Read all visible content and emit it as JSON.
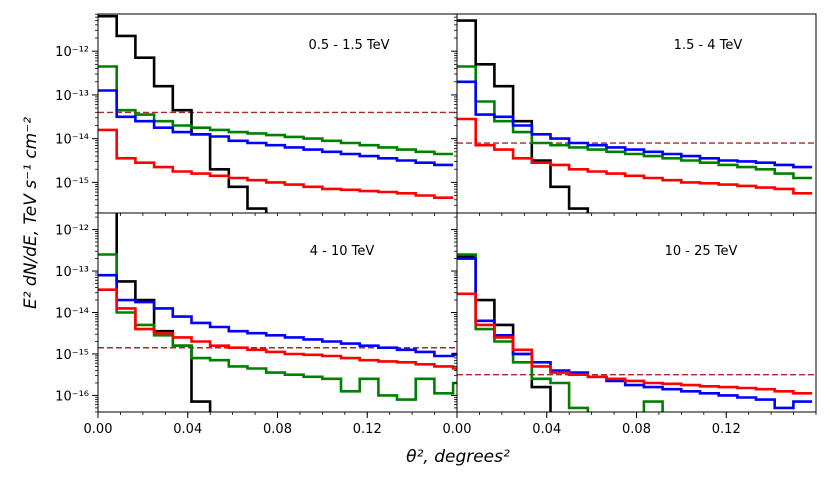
{
  "figure": {
    "xlabel": "θ², degrees²",
    "ylabel": "E² dN/dE, TeV s⁻¹ cm⁻²"
  },
  "colors": {
    "black": "#000000",
    "blue": "#0000ff",
    "green": "#008000",
    "red": "#ff0000",
    "threshold": "#a52a2a"
  },
  "chart_data": [
    {
      "type": "line",
      "label": "0.5 - 1.5 TeV",
      "x_bin_width": 0.00833,
      "xlim": [
        0,
        0.16
      ],
      "ylim_log10": [
        -15.7,
        -11.15
      ],
      "yticks_log10": [
        -12,
        -13,
        -14,
        -15
      ],
      "xticks": [],
      "threshold_log10": -13.4,
      "series": [
        {
          "color": "black",
          "log10_values": [
            -11.2,
            -11.65,
            -12.15,
            -12.8,
            -13.35,
            -13.9,
            -14.7,
            -15.1,
            -15.6,
            -16.5
          ]
        },
        {
          "color": "green",
          "log10_values": [
            -12.35,
            -13.35,
            -13.45,
            -13.6,
            -13.7,
            -13.75,
            -13.8,
            -13.85,
            -13.88,
            -13.92,
            -13.96,
            -14.0,
            -14.05,
            -14.1,
            -14.15,
            -14.2,
            -14.25,
            -14.3,
            -14.35
          ]
        },
        {
          "color": "blue",
          "log10_values": [
            -12.9,
            -13.5,
            -13.6,
            -13.75,
            -13.85,
            -13.9,
            -13.95,
            -14.05,
            -14.1,
            -14.15,
            -14.2,
            -14.25,
            -14.3,
            -14.35,
            -14.4,
            -14.45,
            -14.5,
            -14.55,
            -14.6
          ]
        },
        {
          "color": "red",
          "log10_values": [
            -13.8,
            -14.45,
            -14.55,
            -14.65,
            -14.75,
            -14.8,
            -14.85,
            -14.9,
            -14.95,
            -15.0,
            -15.05,
            -15.1,
            -15.15,
            -15.17,
            -15.2,
            -15.22,
            -15.25,
            -15.3,
            -15.35
          ]
        }
      ]
    },
    {
      "type": "line",
      "label": "1.5 - 4 TeV",
      "x_bin_width": 0.00833,
      "xlim": [
        0,
        0.16
      ],
      "ylim_log10": [
        -15.7,
        -11.15
      ],
      "yticks_log10": [],
      "xticks": [],
      "threshold_log10": -14.1,
      "series": [
        {
          "color": "black",
          "log10_values": [
            -11.3,
            -12.3,
            -12.8,
            -13.6,
            -14.5,
            -15.1,
            -15.6,
            -15.8,
            -16.5
          ]
        },
        {
          "color": "green",
          "log10_values": [
            -12.35,
            -13.15,
            -13.6,
            -13.85,
            -14.1,
            -14.15,
            -14.2,
            -14.25,
            -14.3,
            -14.35,
            -14.4,
            -14.45,
            -14.5,
            -14.55,
            -14.6,
            -14.65,
            -14.7,
            -14.8,
            -14.9
          ]
        },
        {
          "color": "blue",
          "log10_values": [
            -12.7,
            -13.45,
            -13.5,
            -13.7,
            -13.9,
            -14.0,
            -14.1,
            -14.15,
            -14.2,
            -14.25,
            -14.3,
            -14.35,
            -14.4,
            -14.45,
            -14.5,
            -14.52,
            -14.55,
            -14.6,
            -14.65
          ]
        },
        {
          "color": "red",
          "log10_values": [
            -13.55,
            -14.15,
            -14.25,
            -14.45,
            -14.55,
            -14.6,
            -14.7,
            -14.75,
            -14.8,
            -14.85,
            -14.9,
            -14.95,
            -15.0,
            -15.02,
            -15.05,
            -15.08,
            -15.12,
            -15.15,
            -15.25
          ]
        }
      ]
    },
    {
      "type": "line",
      "label": "4 - 10 TeV",
      "x_bin_width": 0.00833,
      "xlim": [
        0,
        0.16
      ],
      "ylim_log10": [
        -16.4,
        -11.6
      ],
      "yticks_log10": [
        -12,
        -13,
        -14,
        -15,
        -16
      ],
      "xticks": [
        0.0,
        0.04,
        0.08,
        0.12
      ],
      "xticklabels": [
        "0.00",
        "0.04",
        "0.08",
        "0.12"
      ],
      "threshold_log10": -14.85,
      "series": [
        {
          "color": "black",
          "log10_values": [
            -11.55,
            -13.25,
            -13.7,
            -14.45,
            -14.8,
            -16.15,
            -17.0
          ]
        },
        {
          "color": "green",
          "log10_values": [
            -12.6,
            -14.0,
            -14.3,
            -14.55,
            -14.8,
            -15.1,
            -15.15,
            -15.3,
            -15.35,
            -15.45,
            -15.5,
            -15.55,
            -15.6,
            -15.9,
            -15.6,
            -16.0,
            -16.1,
            -15.6,
            -15.95,
            -15.7
          ]
        },
        {
          "color": "blue",
          "log10_values": [
            -13.1,
            -13.7,
            -13.75,
            -13.9,
            -14.1,
            -14.25,
            -14.35,
            -14.45,
            -14.5,
            -14.55,
            -14.6,
            -14.65,
            -14.7,
            -14.75,
            -14.8,
            -14.85,
            -14.9,
            -14.95,
            -15.05,
            -15.0
          ]
        },
        {
          "color": "red",
          "log10_values": [
            -13.45,
            -13.9,
            -14.4,
            -14.5,
            -14.6,
            -14.7,
            -14.8,
            -14.85,
            -14.9,
            -14.95,
            -15.0,
            -15.02,
            -15.05,
            -15.1,
            -15.15,
            -15.18,
            -15.2,
            -15.25,
            -15.3,
            -15.35
          ]
        }
      ]
    },
    {
      "type": "line",
      "label": "10 - 25 TeV",
      "x_bin_width": 0.00833,
      "xlim": [
        0,
        0.16
      ],
      "ylim_log10": [
        -16.4,
        -11.6
      ],
      "yticks_log10": [],
      "xticks": [
        0.0,
        0.04,
        0.08,
        0.12
      ],
      "xticklabels": [
        "0.00",
        "0.04",
        "0.08",
        "0.12"
      ],
      "threshold_log10": -15.5,
      "series": [
        {
          "color": "black",
          "log10_values": [
            -12.65,
            -13.7,
            -14.3,
            -15.0,
            -15.8,
            -16.5
          ]
        },
        {
          "color": "green",
          "log10_values": [
            -12.6,
            -14.4,
            -14.7,
            -15.2,
            -15.6,
            -15.7,
            -16.3,
            -16.6,
            -16.6,
            -16.6,
            -16.15,
            -16.6
          ]
        },
        {
          "color": "blue",
          "log10_values": [
            -12.7,
            -14.2,
            -14.55,
            -15.0,
            -15.2,
            -15.4,
            -15.45,
            -15.55,
            -15.65,
            -15.75,
            -15.8,
            -15.85,
            -15.9,
            -15.95,
            -16.0,
            -16.05,
            -16.1,
            -16.3,
            -16.15
          ]
        },
        {
          "color": "red",
          "log10_values": [
            -13.55,
            -14.3,
            -14.6,
            -14.9,
            -15.3,
            -15.45,
            -15.5,
            -15.55,
            -15.6,
            -15.65,
            -15.7,
            -15.72,
            -15.75,
            -15.78,
            -15.8,
            -15.82,
            -15.85,
            -15.9,
            -15.95
          ]
        }
      ]
    }
  ]
}
